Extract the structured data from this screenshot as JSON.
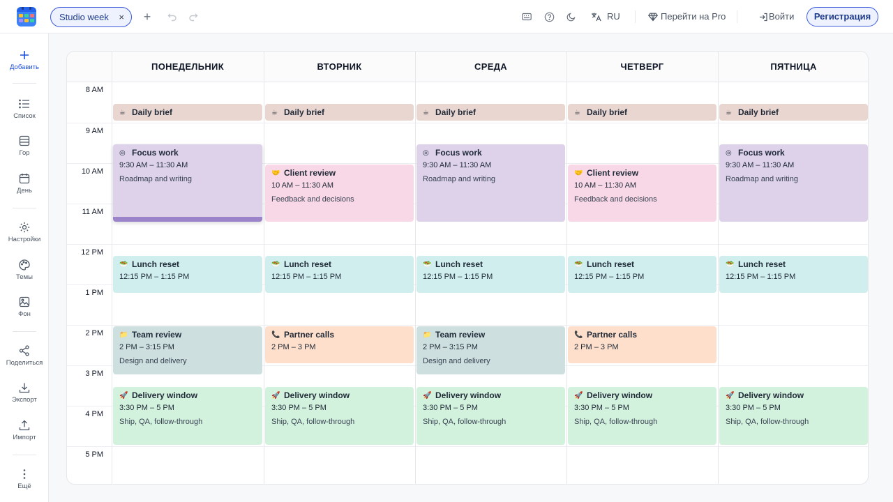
{
  "topbar": {
    "tab_label": "Studio week",
    "tab_close": "×",
    "add_tab": "+",
    "language": "RU",
    "pro_label": "Перейти на Pro",
    "login_label": "Войти",
    "register_label": "Регистрация"
  },
  "sidebar": {
    "add": "Добавить",
    "list": "Список",
    "year": "Гор",
    "day": "День",
    "settings": "Настройки",
    "themes": "Темы",
    "background": "Фон",
    "share": "Поделиться",
    "export": "Экспорт",
    "import": "Импорт",
    "more": "Ещё"
  },
  "days": [
    "ПОНЕДЕЛЬНИК",
    "ВТОРНИК",
    "СРЕДА",
    "ЧЕТВЕРГ",
    "ПЯТНИЦА"
  ],
  "times": [
    "8 AM",
    "9 AM",
    "10 AM",
    "11 AM",
    "12 PM",
    "1 PM",
    "2 PM",
    "3 PM",
    "4 PM",
    "5 PM"
  ],
  "events": {
    "brief": {
      "title": "Daily brief"
    },
    "focus": {
      "title": "Focus work",
      "time": "9:30 AM – 11:30 AM",
      "desc": "Roadmap and writing"
    },
    "client": {
      "title": "Client review",
      "time": "10 AM – 11:30 AM",
      "desc": "Feedback and decisions"
    },
    "lunch": {
      "title": "Lunch reset",
      "time": "12:15 PM – 1:15 PM"
    },
    "team": {
      "title": "Team review",
      "time": "2 PM – 3:15 PM",
      "desc": "Design and delivery"
    },
    "partner": {
      "title": "Partner calls",
      "time": "2 PM – 3 PM"
    },
    "delivery": {
      "title": "Delivery window",
      "time": "3:30 PM – 5 PM",
      "desc": "Ship, QA, follow-through"
    }
  },
  "colors": {
    "accent": "#3b5bdb",
    "brief": "#ead6d0",
    "focus": "#ddd2ea",
    "client": "#f8d8e6",
    "lunch": "#cfeeed",
    "team": "#cde0df",
    "partner": "#fddfcb",
    "delivery": "#d3f2de"
  }
}
